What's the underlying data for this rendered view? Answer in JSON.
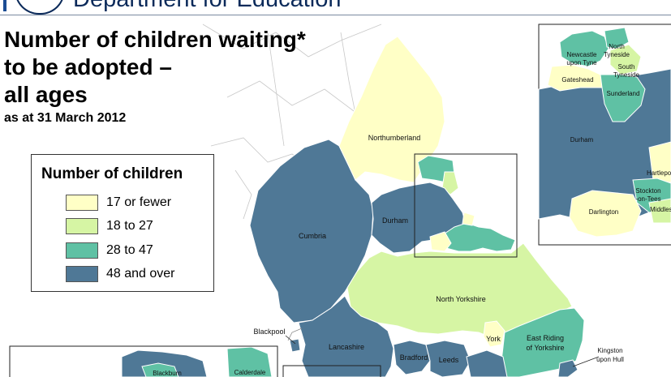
{
  "header": {
    "department": "Department for Education"
  },
  "title": {
    "lines": [
      "Number of children waiting*",
      "to be adopted –",
      "all ages"
    ],
    "subtitle": "as at 31 March 2012"
  },
  "legend": {
    "title": "Number of children",
    "items": [
      {
        "label": "17 or fewer",
        "color": "#ffffc6"
      },
      {
        "label": "18 to 27",
        "color": "#d6f5a4"
      },
      {
        "label": "28 to 47",
        "color": "#5fc1a4"
      },
      {
        "label": "48 and over",
        "color": "#4f7896"
      }
    ]
  },
  "regions": {
    "northumberland": "Northumberland",
    "cumbria": "Cumbria",
    "durham": "Durham",
    "north_yorkshire": "North Yorkshire",
    "lancashire": "Lancashire",
    "blackpool": "Blackpool",
    "york": "York",
    "east_riding": [
      "East Riding",
      "of Yorkshire"
    ],
    "kingston": [
      "Kingston",
      "upon Hull"
    ],
    "bradford": "Bradford",
    "leeds": "Leeds",
    "blackburn": "Blackburn",
    "calderdale": "Calderdale"
  },
  "inset": {
    "newcastle": [
      "Newcastle",
      "upon Tyne"
    ],
    "north_tyneside": [
      "North",
      "Tyneside"
    ],
    "south_tyneside": [
      "South",
      "Tyneside"
    ],
    "gateshead": "Gateshead",
    "sunderland": "Sunderland",
    "durham": "Durham",
    "hartlepool": "Hartlepo",
    "stockton": [
      "Stockton",
      "-on-Tees"
    ],
    "middlesbrough": "Middles",
    "darlington": "Darlington"
  }
}
